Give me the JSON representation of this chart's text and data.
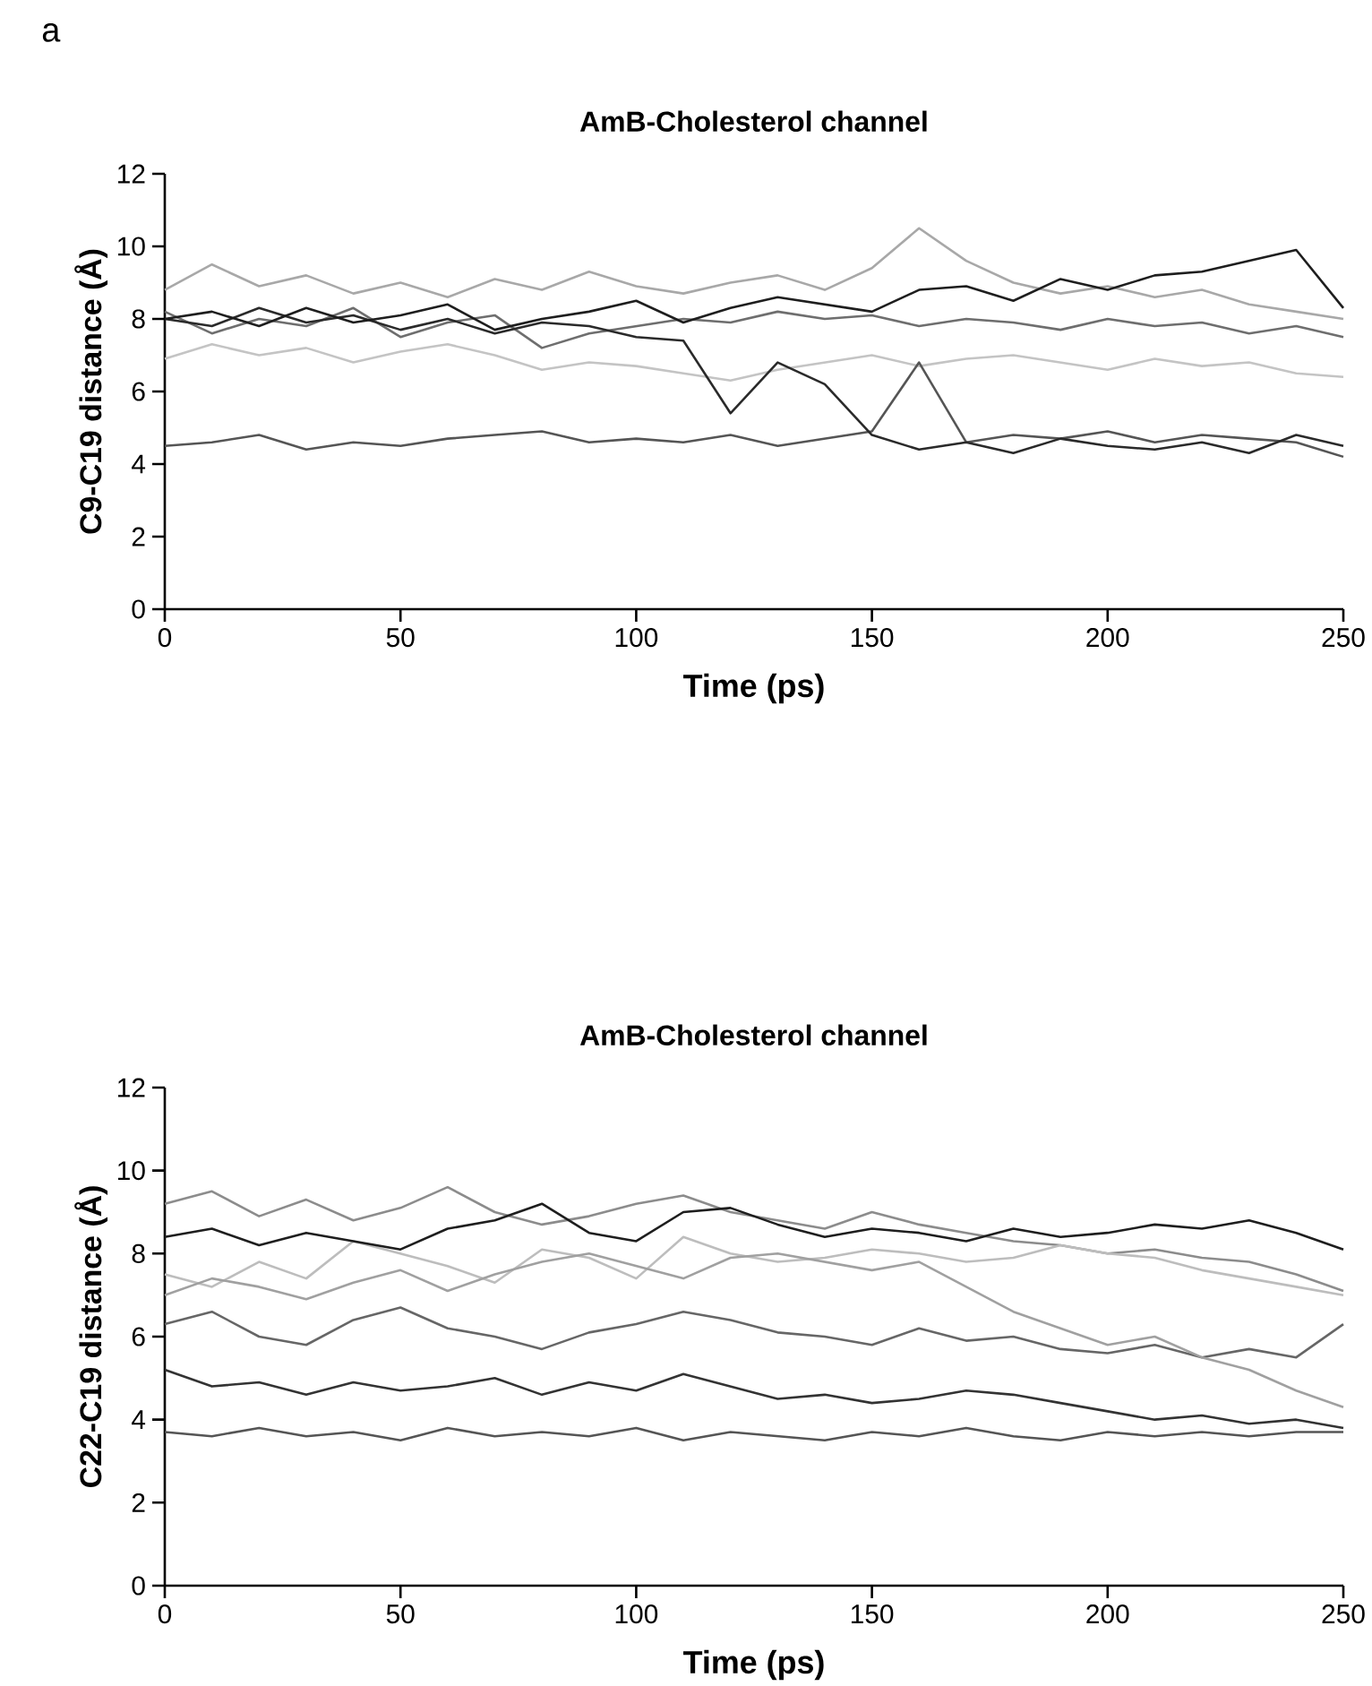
{
  "chart_data": [
    {
      "type": "line",
      "title": "AmB-Cholesterol channel",
      "xlabel": "Time (ps)",
      "ylabel": "C9-C19 distance (Å)",
      "annotations": [
        "a"
      ],
      "xlim": [
        0,
        250
      ],
      "xticks": [
        0,
        50,
        100,
        150,
        200,
        250
      ],
      "ylim": [
        0,
        12
      ],
      "yticks": [
        0,
        2,
        4,
        6,
        8,
        10,
        12
      ],
      "x": [
        0,
        10,
        20,
        30,
        40,
        50,
        60,
        70,
        80,
        90,
        100,
        110,
        120,
        130,
        140,
        150,
        160,
        170,
        180,
        190,
        200,
        210,
        220,
        230,
        240,
        250
      ],
      "series": [
        {
          "color": "#a8a8a8",
          "values": [
            8.8,
            9.5,
            8.9,
            9.2,
            8.7,
            9,
            8.6,
            9.1,
            8.8,
            9.3,
            8.9,
            8.7,
            9,
            9.2,
            8.8,
            9.4,
            10.5,
            9.6,
            9,
            8.7,
            8.9,
            8.6,
            8.8,
            8.4,
            8.2,
            8
          ]
        },
        {
          "color": "#6e6e6e",
          "values": [
            8.2,
            7.6,
            8,
            7.8,
            8.3,
            7.5,
            7.9,
            8.1,
            7.2,
            7.6,
            7.8,
            8,
            7.9,
            8.2,
            8,
            8.1,
            7.8,
            8,
            7.9,
            7.7,
            8,
            7.8,
            7.9,
            7.6,
            7.8,
            7.5
          ]
        },
        {
          "color": "#c4c4c4",
          "values": [
            6.9,
            7.3,
            7,
            7.2,
            6.8,
            7.1,
            7.3,
            7,
            6.6,
            6.8,
            6.7,
            6.5,
            6.3,
            6.6,
            6.8,
            7,
            6.7,
            6.9,
            7,
            6.8,
            6.6,
            6.9,
            6.7,
            6.8,
            6.5,
            6.4
          ]
        },
        {
          "color": "#555555",
          "values": [
            4.5,
            4.6,
            4.8,
            4.4,
            4.6,
            4.5,
            4.7,
            4.8,
            4.9,
            4.6,
            4.7,
            4.6,
            4.8,
            4.5,
            4.7,
            4.9,
            6.8,
            4.6,
            4.8,
            4.7,
            4.9,
            4.6,
            4.8,
            4.7,
            4.6,
            4.2
          ]
        },
        {
          "color": "#2a2a2a",
          "values": [
            8,
            7.8,
            8.3,
            7.9,
            8.1,
            7.7,
            8,
            7.6,
            7.9,
            7.8,
            7.5,
            7.4,
            5.4,
            6.8,
            6.2,
            4.8,
            4.4,
            4.6,
            4.3,
            4.7,
            4.5,
            4.4,
            4.6,
            4.3,
            4.8,
            4.5
          ]
        },
        {
          "color": "#1e1e1e",
          "values": [
            8,
            8.2,
            7.8,
            8.3,
            7.9,
            8.1,
            8.4,
            7.7,
            8,
            8.2,
            8.5,
            7.9,
            8.3,
            8.6,
            8.4,
            8.2,
            8.8,
            8.9,
            8.5,
            9.1,
            8.8,
            9.2,
            9.3,
            9.6,
            9.9,
            8.3
          ]
        }
      ]
    },
    {
      "type": "line",
      "title": "AmB-Cholesterol channel",
      "xlabel": "Time (ps)",
      "ylabel": "C22-C19 distance (Å)",
      "xlim": [
        0,
        250
      ],
      "xticks": [
        0,
        50,
        100,
        150,
        200,
        250
      ],
      "ylim": [
        0,
        12
      ],
      "yticks": [
        0,
        2,
        4,
        6,
        8,
        10,
        12
      ],
      "x": [
        0,
        10,
        20,
        30,
        40,
        50,
        60,
        70,
        80,
        90,
        100,
        110,
        120,
        130,
        140,
        150,
        160,
        170,
        180,
        190,
        200,
        210,
        220,
        230,
        240,
        250
      ],
      "series": [
        {
          "color": "#8c8c8c",
          "values": [
            9.2,
            9.5,
            8.9,
            9.3,
            8.8,
            9.1,
            9.6,
            9,
            8.7,
            8.9,
            9.2,
            9.4,
            9,
            8.8,
            8.6,
            9,
            8.7,
            8.5,
            8.3,
            8.2,
            8,
            8.1,
            7.9,
            7.8,
            7.5,
            7.1
          ]
        },
        {
          "color": "#bdbdbd",
          "values": [
            7.5,
            7.2,
            7.8,
            7.4,
            8.3,
            8,
            7.7,
            7.3,
            8.1,
            7.9,
            7.4,
            8.4,
            8,
            7.8,
            7.9,
            8.1,
            8,
            7.8,
            7.9,
            8.2,
            8,
            7.9,
            7.6,
            7.4,
            7.2,
            7
          ]
        },
        {
          "color": "#666666",
          "values": [
            6.3,
            6.6,
            6,
            5.8,
            6.4,
            6.7,
            6.2,
            6,
            5.7,
            6.1,
            6.3,
            6.6,
            6.4,
            6.1,
            6,
            5.8,
            6.2,
            5.9,
            6,
            5.7,
            5.6,
            5.8,
            5.5,
            5.7,
            5.5,
            6.3
          ]
        },
        {
          "color": "#a0a0a0",
          "values": [
            7,
            7.4,
            7.2,
            6.9,
            7.3,
            7.6,
            7.1,
            7.5,
            7.8,
            8,
            7.7,
            7.4,
            7.9,
            8,
            7.8,
            7.6,
            7.8,
            7.2,
            6.6,
            6.2,
            5.8,
            6,
            5.5,
            5.2,
            4.7,
            4.3
          ]
        },
        {
          "color": "#333333",
          "values": [
            5.2,
            4.8,
            4.9,
            4.6,
            4.9,
            4.7,
            4.8,
            5,
            4.6,
            4.9,
            4.7,
            5.1,
            4.8,
            4.5,
            4.6,
            4.4,
            4.5,
            4.7,
            4.6,
            4.4,
            4.2,
            4,
            4.1,
            3.9,
            4,
            3.8
          ]
        },
        {
          "color": "#555555",
          "values": [
            3.7,
            3.6,
            3.8,
            3.6,
            3.7,
            3.5,
            3.8,
            3.6,
            3.7,
            3.6,
            3.8,
            3.5,
            3.7,
            3.6,
            3.5,
            3.7,
            3.6,
            3.8,
            3.6,
            3.5,
            3.7,
            3.6,
            3.7,
            3.6,
            3.7,
            3.7
          ]
        },
        {
          "color": "#1e1e1e",
          "values": [
            8.4,
            8.6,
            8.2,
            8.5,
            8.3,
            8.1,
            8.6,
            8.8,
            9.2,
            8.5,
            8.3,
            9,
            9.1,
            8.7,
            8.4,
            8.6,
            8.5,
            8.3,
            8.6,
            8.4,
            8.5,
            8.7,
            8.6,
            8.8,
            8.5,
            8.1
          ]
        }
      ]
    }
  ]
}
